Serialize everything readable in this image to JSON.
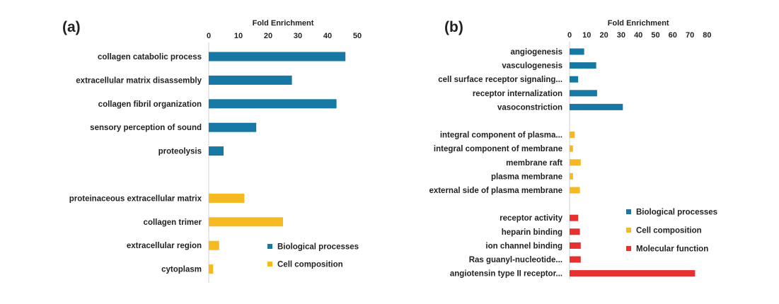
{
  "chart_data": [
    {
      "type": "bar",
      "orientation": "horizontal",
      "panel_label": "(a)",
      "xlabel": "Fold Enrichment",
      "xlim": [
        0,
        50
      ],
      "xticks": [
        0,
        10,
        20,
        30,
        40,
        50
      ],
      "legend_position": "bottom-right",
      "series": [
        {
          "name": "Biological processes",
          "color": "#1779a3",
          "categories": [
            "collagen catabolic process",
            "extracellular matrix disassembly",
            "collagen fibril organization",
            "sensory perception of sound",
            "proteolysis"
          ],
          "values": [
            46,
            28,
            43,
            16,
            5
          ]
        },
        {
          "name": "Cell composition",
          "color": "#f5b921",
          "categories": [
            "proteinaceous extracellular matrix",
            "collagen trimer",
            "extracellular region",
            "cytoplasm"
          ],
          "values": [
            12,
            25,
            3.5,
            1.5
          ]
        }
      ]
    },
    {
      "type": "bar",
      "orientation": "horizontal",
      "panel_label": "(b)",
      "xlabel": "Fold Enrichment",
      "xlim": [
        0,
        80
      ],
      "xticks": [
        0,
        10,
        20,
        30,
        40,
        50,
        60,
        70,
        80
      ],
      "legend_position": "right",
      "series": [
        {
          "name": "Biological processes",
          "color": "#1779a3",
          "categories": [
            "angiogenesis",
            "vasculogenesis",
            "cell surface receptor signaling...",
            "receptor internalization",
            "vasoconstriction"
          ],
          "values": [
            8.5,
            15.5,
            5,
            16,
            31
          ]
        },
        {
          "name": "Cell composition",
          "color": "#f5b921",
          "categories": [
            "integral component of plasma...",
            "integral component of membrane",
            "membrane raft",
            "plasma membrane",
            "external side of plasma membrane"
          ],
          "values": [
            3,
            2,
            6.5,
            2,
            6
          ]
        },
        {
          "name": "Molecular function",
          "color": "#e5312f",
          "categories": [
            "receptor activity",
            "heparin binding",
            "ion channel binding",
            "Ras guanyl-nucleotide...",
            "angiotensin type II receptor..."
          ],
          "values": [
            5,
            6,
            6.5,
            6.5,
            73
          ]
        }
      ]
    }
  ]
}
